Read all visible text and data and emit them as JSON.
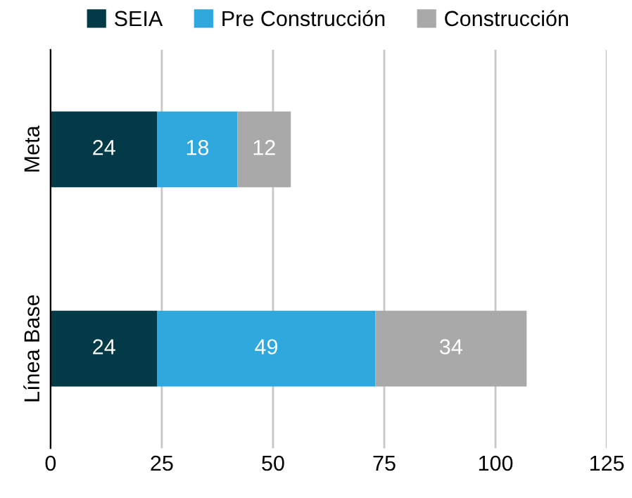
{
  "chart_data": {
    "type": "bar",
    "orientation": "horizontal",
    "stacked": true,
    "categories": [
      "Meta",
      "Línea Base"
    ],
    "series": [
      {
        "name": "SEIA",
        "color": "#023b47",
        "values": [
          24,
          24
        ]
      },
      {
        "name": "Pre Construcción",
        "color": "#2fa8de",
        "values": [
          18,
          49
        ]
      },
      {
        "name": "Construcción",
        "color": "#a9a9a9",
        "values": [
          12,
          34
        ]
      }
    ],
    "xlim": [
      0,
      125
    ],
    "xticks": [
      0,
      25,
      50,
      75,
      100,
      125
    ],
    "grid": "x",
    "legend": "top",
    "data_labels": true
  }
}
